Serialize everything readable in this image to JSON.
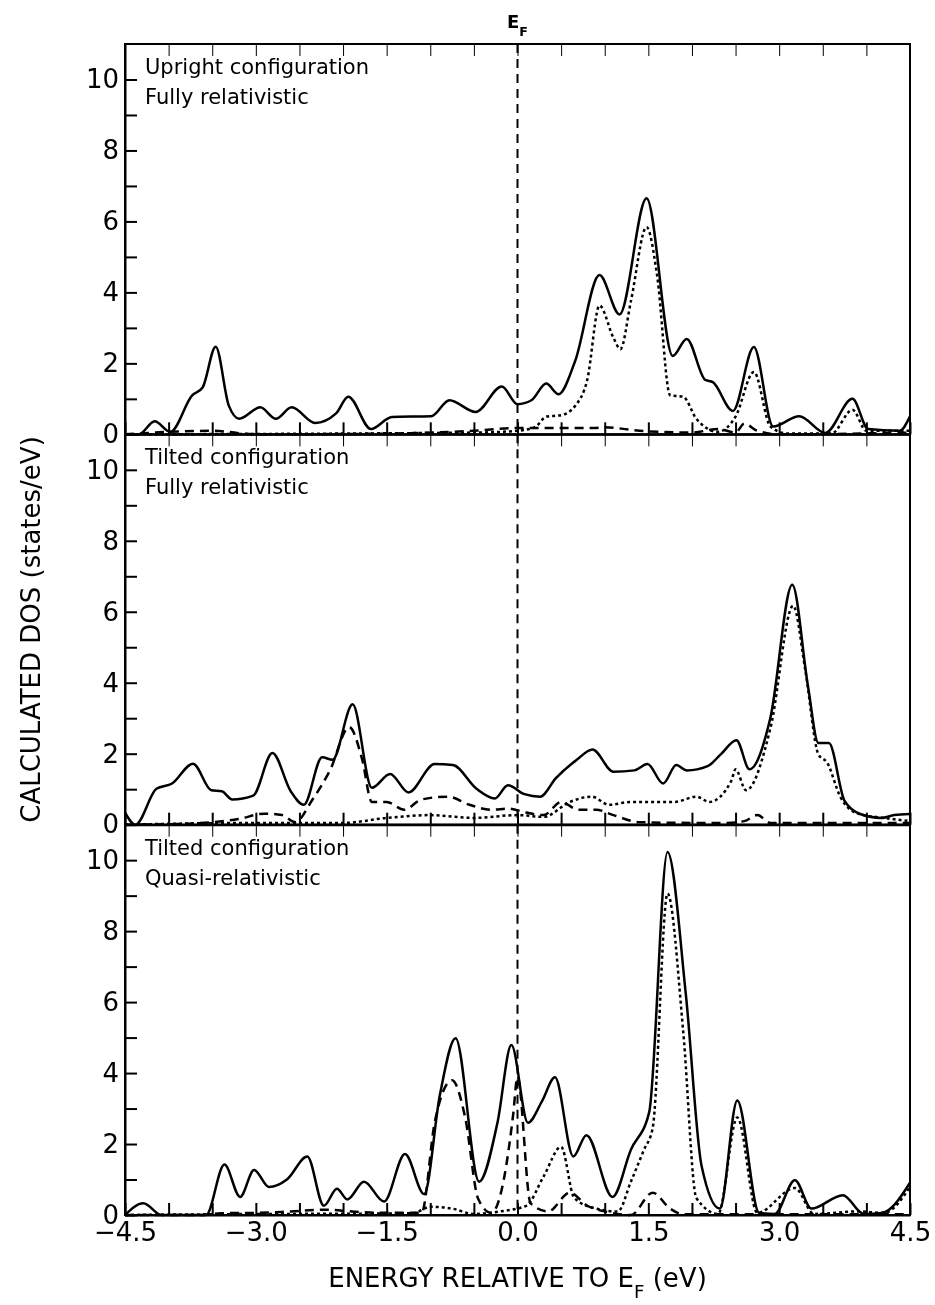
{
  "chart_data": [
    {
      "type": "line",
      "annotations": [
        "Upright configuration",
        "Fully relativistic"
      ],
      "xlim": [
        -4.5,
        4.5
      ],
      "ylim": [
        0,
        11
      ],
      "tick_labels": "y",
      "xticks": [
        {
          "value": -4.5,
          "label": null
        },
        {
          "value": -4,
          "label": null
        },
        {
          "value": -3.5,
          "label": null
        },
        {
          "value": -3,
          "label": null
        },
        {
          "value": -2.5,
          "label": null
        },
        {
          "value": -2,
          "label": null
        },
        {
          "value": -1.5,
          "label": null
        },
        {
          "value": -1,
          "label": null
        },
        {
          "value": -0.5,
          "label": null
        },
        {
          "value": 0,
          "label": null
        },
        {
          "value": 0.5,
          "label": null
        },
        {
          "value": 1,
          "label": null
        },
        {
          "value": 1.5,
          "label": null
        },
        {
          "value": 2,
          "label": null
        },
        {
          "value": 2.5,
          "label": null
        },
        {
          "value": 3,
          "label": null
        },
        {
          "value": 3.5,
          "label": null
        },
        {
          "value": 4,
          "label": null
        },
        {
          "value": 4.5,
          "label": null
        }
      ],
      "yticks": [
        0,
        {
          "value": 1,
          "label": null
        },
        2,
        {
          "value": 3,
          "label": null
        },
        4,
        {
          "value": 5,
          "label": null
        },
        6,
        {
          "value": 7,
          "label": null
        },
        8,
        {
          "value": 9,
          "label": null
        },
        10
      ],
      "ref_lines": [
        {
          "axis": "x",
          "value": 0,
          "label": "E$_{F}$",
          "line_style": "dashed"
        }
      ],
      "series": [
        {
          "color": "#000000",
          "line_style": "solid",
          "x": [
            -4.5,
            -4.34,
            -4.16,
            -3.98,
            -3.73,
            -3.61,
            -3.46,
            -3.31,
            -3.19,
            -2.95,
            -2.77,
            -2.59,
            -2.32,
            -2.08,
            -1.94,
            -1.68,
            -1.44,
            -0.99,
            -0.78,
            -0.48,
            -0.18,
            0.0,
            0.16,
            0.33,
            0.47,
            0.66,
            0.94,
            1.17,
            1.48,
            1.78,
            1.94,
            2.15,
            2.24,
            2.47,
            2.71,
            2.93,
            3.23,
            3.53,
            3.84,
            4.02,
            4.38,
            4.5
          ],
          "values": [
            0,
            0,
            0.37,
            0.07,
            1.1,
            1.32,
            2.47,
            0.81,
            0.44,
            0.76,
            0.44,
            0.76,
            0.32,
            0.59,
            1.06,
            0.15,
            0.49,
            0.51,
            0.96,
            0.63,
            1.35,
            0.85,
            0.96,
            1.43,
            1.13,
            2.06,
            4.49,
            3.38,
            6.65,
            2.21,
            2.69,
            1.54,
            1.47,
            0.66,
            2.46,
            0.22,
            0.51,
            0.04,
            1.0,
            0.15,
            0.1,
            0.51
          ]
        },
        {
          "color": "#000000",
          "line_style": "dotted",
          "x": [
            -4.5,
            -0.5,
            0.0,
            0.2,
            0.33,
            0.5,
            0.66,
            0.8,
            0.94,
            1.1,
            1.18,
            1.3,
            1.48,
            1.6,
            1.75,
            1.9,
            2.05,
            2.3,
            2.5,
            2.71,
            2.9,
            3.1,
            3.6,
            3.84,
            4.0,
            4.5
          ],
          "values": [
            0,
            0.05,
            0.1,
            0.2,
            0.5,
            0.54,
            0.8,
            1.54,
            3.63,
            2.72,
            2.4,
            3.75,
            5.84,
            4.49,
            1.1,
            1.06,
            0.44,
            0.07,
            0.5,
            1.76,
            0.22,
            0.02,
            0.02,
            0.69,
            0.1,
            0.1
          ]
        },
        {
          "color": "#000000",
          "line_style": "dashed",
          "x": [
            -4.5,
            -3.5,
            -3.0,
            -1.5,
            -0.5,
            0,
            0.9,
            1.0,
            1.4,
            2.0,
            2.3,
            2.5,
            2.6,
            2.75,
            3.0,
            4.5
          ],
          "values": [
            0,
            0.1,
            0,
            0.02,
            0.1,
            0.18,
            0.18,
            0.2,
            0.1,
            0.05,
            0.15,
            0.05,
            0.3,
            0.1,
            0,
            0.05
          ]
        }
      ]
    },
    {
      "type": "line",
      "annotations": [
        "Tilted configuration",
        "Fully relativistic"
      ],
      "ylabel": "CALCULATED DOS (states/eV)",
      "xlim": [
        -4.5,
        4.5
      ],
      "ylim": [
        0,
        11
      ],
      "tick_labels": "y",
      "xticks": [
        {
          "value": -4.5,
          "label": null
        },
        {
          "value": -4,
          "label": null
        },
        {
          "value": -3.5,
          "label": null
        },
        {
          "value": -3,
          "label": null
        },
        {
          "value": -2.5,
          "label": null
        },
        {
          "value": -2,
          "label": null
        },
        {
          "value": -1.5,
          "label": null
        },
        {
          "value": -1,
          "label": null
        },
        {
          "value": -0.5,
          "label": null
        },
        {
          "value": 0,
          "label": null
        },
        {
          "value": 0.5,
          "label": null
        },
        {
          "value": 1,
          "label": null
        },
        {
          "value": 1.5,
          "label": null
        },
        {
          "value": 2,
          "label": null
        },
        {
          "value": 2.5,
          "label": null
        },
        {
          "value": 3,
          "label": null
        },
        {
          "value": 3.5,
          "label": null
        },
        {
          "value": 4,
          "label": null
        },
        {
          "value": 4.5,
          "label": null
        }
      ],
      "yticks": [
        0,
        {
          "value": 1,
          "label": null
        },
        2,
        {
          "value": 3,
          "label": null
        },
        4,
        {
          "value": 5,
          "label": null
        },
        6,
        {
          "value": 7,
          "label": null
        },
        8,
        {
          "value": 9,
          "label": null
        },
        10
      ],
      "ref_lines": [
        {
          "axis": "x",
          "value": 0,
          "line_style": "dashed"
        }
      ],
      "series": [
        {
          "color": "#000000",
          "line_style": "solid",
          "x": [
            -4.5,
            -4.38,
            -4.14,
            -3.96,
            -3.72,
            -3.51,
            -3.39,
            -3.27,
            -3.03,
            -2.81,
            -2.6,
            -2.45,
            -2.24,
            -2.12,
            -1.89,
            -1.67,
            -1.46,
            -1.25,
            -0.95,
            -0.74,
            -0.47,
            -0.26,
            -0.11,
            0.08,
            0.26,
            0.44,
            0.68,
            0.86,
            1.1,
            1.34,
            1.49,
            1.67,
            1.82,
            1.94,
            2.18,
            2.33,
            2.51,
            2.66,
            2.9,
            3.15,
            3.33,
            3.45,
            3.57,
            3.75,
            3.93,
            4.17,
            4.32,
            4.5
          ],
          "values": [
            0.34,
            0,
            1.01,
            1.16,
            1.72,
            0.97,
            0.94,
            0.71,
            0.82,
            2.02,
            0.94,
            0.56,
            1.9,
            1.83,
            3.39,
            1.04,
            1.43,
            0.91,
            1.71,
            1.68,
            1.01,
            0.74,
            1.11,
            0.86,
            0.79,
            1.31,
            1.83,
            2.12,
            1.49,
            1.53,
            1.71,
            1.16,
            1.68,
            1.53,
            1.65,
            1.98,
            2.38,
            1.56,
            3.02,
            6.76,
            3.91,
            2.3,
            2.3,
            0.67,
            0.3,
            0.19,
            0.27,
            0.3
          ]
        },
        {
          "color": "#000000",
          "line_style": "dotted",
          "x": [
            -4.5,
            -3.0,
            -2.0,
            -1.5,
            -1.0,
            -0.5,
            0.0,
            0.3,
            0.6,
            0.85,
            1.05,
            1.3,
            1.6,
            1.8,
            2.05,
            2.2,
            2.45,
            2.5,
            2.62,
            2.9,
            3.16,
            3.3,
            3.45,
            3.55,
            3.7,
            3.9,
            4.2,
            4.5
          ],
          "values": [
            0,
            0.05,
            0.05,
            0.19,
            0.27,
            0.19,
            0.27,
            0.22,
            0.64,
            0.79,
            0.56,
            0.64,
            0.64,
            0.64,
            0.79,
            0.64,
            1.23,
            1.56,
            0.97,
            2.72,
            6.17,
            4.35,
            1.98,
            1.75,
            0.79,
            0.31,
            0.19,
            0.1
          ]
        },
        {
          "color": "#000000",
          "line_style": "dashed",
          "x": [
            -4.5,
            -3.9,
            -3.5,
            -3.2,
            -2.9,
            -2.7,
            -2.55,
            -2.35,
            -2.15,
            -1.93,
            -1.78,
            -1.67,
            -1.5,
            -1.3,
            -1.1,
            -0.8,
            -0.55,
            -0.3,
            -0.1,
            0.1,
            0.3,
            0.5,
            0.7,
            0.9,
            1.1,
            1.4,
            2.0,
            2.4,
            2.6,
            2.75,
            2.9,
            4.5
          ],
          "values": [
            0,
            0.02,
            0.07,
            0.16,
            0.31,
            0.27,
            0.07,
            0.71,
            1.53,
            2.75,
            1.83,
            0.64,
            0.64,
            0.42,
            0.71,
            0.79,
            0.56,
            0.42,
            0.45,
            0.34,
            0.27,
            0.64,
            0.42,
            0.42,
            0.27,
            0.07,
            0.05,
            0.05,
            0.1,
            0.27,
            0.05,
            0.05
          ]
        }
      ]
    },
    {
      "type": "line",
      "annotations": [
        "Tilted configuration",
        "Quasi-relativistic"
      ],
      "xlabel": "ENERGY RELATIVE TO E$_{F}$ (eV)",
      "xlim": [
        -4.5,
        4.5
      ],
      "ylim": [
        0,
        11
      ],
      "xticks": [
        {
          "value": -4.5,
          "label": "−4.5"
        },
        {
          "value": -4,
          "label": null
        },
        {
          "value": -3.5,
          "label": null
        },
        {
          "value": -3,
          "label": "−3.0"
        },
        {
          "value": -2.5,
          "label": null
        },
        {
          "value": -2,
          "label": null
        },
        {
          "value": -1.5,
          "label": "−1.5"
        },
        {
          "value": -1,
          "label": null
        },
        {
          "value": -0.5,
          "label": null
        },
        {
          "value": 0,
          "label": "0.0"
        },
        {
          "value": 0.5,
          "label": null
        },
        {
          "value": 1,
          "label": null
        },
        {
          "value": 1.5,
          "label": "1.5"
        },
        {
          "value": 2,
          "label": null
        },
        {
          "value": 2.5,
          "label": null
        },
        {
          "value": 3,
          "label": "3.0"
        },
        {
          "value": 3.5,
          "label": null
        },
        {
          "value": 4,
          "label": null
        },
        {
          "value": 4.5,
          "label": "4.5"
        }
      ],
      "yticks": [
        0,
        {
          "value": 1,
          "label": null
        },
        2,
        {
          "value": 3,
          "label": null
        },
        4,
        {
          "value": 5,
          "label": null
        },
        6,
        {
          "value": 7,
          "label": null
        },
        8,
        {
          "value": 9,
          "label": null
        },
        10
      ],
      "ref_lines": [
        {
          "axis": "x",
          "value": 0,
          "line_style": "dashed"
        }
      ],
      "series": [
        {
          "color": "#000000",
          "line_style": "solid",
          "x": [
            -4.5,
            -4.29,
            -4.08,
            -3.57,
            -3.36,
            -3.18,
            -3.02,
            -2.85,
            -2.64,
            -2.41,
            -2.22,
            -2.07,
            -1.95,
            -1.76,
            -1.53,
            -1.29,
            -1.07,
            -0.89,
            -0.71,
            -0.44,
            -0.23,
            -0.07,
            0.12,
            0.28,
            0.43,
            0.64,
            0.79,
            1.09,
            1.3,
            1.51,
            1.72,
            1.93,
            2.11,
            2.32,
            2.52,
            2.77,
            2.95,
            3.18,
            3.37,
            3.73,
            3.97,
            4.18,
            4.5
          ],
          "values": [
            0,
            0.33,
            0,
            0,
            1.42,
            0.51,
            1.27,
            0.79,
            1.01,
            1.65,
            0.26,
            0.74,
            0.44,
            0.94,
            0.38,
            1.72,
            0.59,
            3.38,
            4.98,
            0.94,
            2.6,
            4.79,
            2.6,
            3.2,
            3.88,
            1.65,
            2.25,
            0.51,
            1.84,
            2.9,
            10.23,
            6.22,
            1.39,
            0.18,
            3.23,
            0.06,
            0.03,
            0.98,
            0.18,
            0.56,
            0.03,
            0.06,
            0.91
          ]
        },
        {
          "color": "#000000",
          "line_style": "dotted",
          "x": [
            -4.5,
            -3.5,
            -1.2,
            -1.0,
            -0.75,
            -0.5,
            -0.2,
            0.1,
            0.3,
            0.5,
            0.65,
            0.9,
            1.15,
            1.3,
            1.45,
            1.55,
            1.72,
            1.9,
            2.05,
            2.3,
            2.52,
            2.75,
            3.18,
            3.4,
            3.9,
            4.2,
            4.5
          ],
          "values": [
            0,
            0.02,
            0.05,
            0.23,
            0.18,
            0.03,
            0.1,
            0.26,
            1.09,
            1.92,
            0.48,
            0.18,
            0.1,
            0.94,
            1.84,
            2.45,
            9.06,
            5.17,
            0.48,
            0.03,
            2.75,
            0.06,
            0.76,
            0.03,
            0.1,
            0.06,
            0.79
          ]
        },
        {
          "color": "#000000",
          "line_style": "dashed",
          "x": [
            -4.5,
            -3.6,
            -3.4,
            -3.0,
            -2.6,
            -2.2,
            -1.9,
            -1.6,
            -1.4,
            -1.1,
            -0.95,
            -0.75,
            -0.6,
            -0.45,
            -0.3,
            -0.15,
            -0.05,
            0.0,
            0.15,
            0.35,
            0.6,
            0.8,
            1.0,
            1.3,
            1.55,
            1.75,
            1.9,
            4.5
          ],
          "values": [
            0,
            0,
            0.05,
            0.06,
            0.1,
            0.15,
            0.1,
            0.06,
            0.06,
            0.06,
            2.6,
            3.8,
            2.75,
            0.45,
            0.06,
            1.09,
            2.82,
            3.9,
            0.33,
            0.1,
            0.63,
            0.26,
            0.1,
            0,
            0.63,
            0.18,
            0.02,
            0.02
          ]
        }
      ]
    }
  ]
}
